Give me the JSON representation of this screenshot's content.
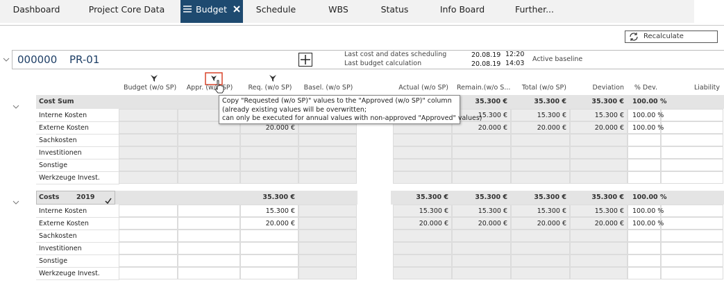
{
  "tabs": [
    {
      "label": "Dashboard"
    },
    {
      "label": "Project Core Data"
    },
    {
      "label": "Budget",
      "active": true
    },
    {
      "label": "Schedule"
    },
    {
      "label": "WBS"
    },
    {
      "label": "Status"
    },
    {
      "label": "Info Board"
    },
    {
      "label": "Further..."
    }
  ],
  "recalculate_button": "Recalculate",
  "project": {
    "id": "000000",
    "name": "PR-01",
    "scheduling": [
      {
        "label": "Last cost and dates scheduling",
        "date": "20.08.19",
        "time": "12:20"
      },
      {
        "label": "Last budget calculation",
        "date": "20.08.19",
        "time": "14:03"
      }
    ],
    "baseline": "Active baseline"
  },
  "columns": [
    {
      "key": "budget",
      "label": "Budget (w/o SP)"
    },
    {
      "key": "appr",
      "label": "Appr. (w/o SP)"
    },
    {
      "key": "req",
      "label": "Req. (w/o SP)"
    },
    {
      "key": "basel",
      "label": "Basel. (w/o SP)"
    },
    {
      "key": "actual",
      "label": "Actual (w/o SP)"
    },
    {
      "key": "remain",
      "label": "Remain.(w/o S..."
    },
    {
      "key": "total",
      "label": "Total (w/o SP)"
    },
    {
      "key": "deviation",
      "label": "Deviation"
    },
    {
      "key": "pct_dev",
      "label": "% Dev."
    },
    {
      "key": "liability",
      "label": "Liability"
    }
  ],
  "tooltip": [
    "Copy \"Requested (w/o SP)\" values to the \"Approved (w/o SP)\" column",
    "(already existing values will be overwritten;",
    "can only be executed for annual values with non-approved \"Approved\" values)"
  ],
  "sections": [
    {
      "title": "Cost Sum",
      "summary": {
        "remain": "35.300 €",
        "total": "35.300 €",
        "deviation": "35.300 €",
        "pct_dev": "100.00 %"
      },
      "rows": [
        {
          "label": "Interne Kosten",
          "values": {
            "remain": "15.300 €",
            "total": "15.300 €",
            "deviation": "15.300 €",
            "pct_dev": "100.00 %"
          }
        },
        {
          "label": "Externe Kosten",
          "values": {
            "req": "20.000 €",
            "remain": "20.000 €",
            "total": "20.000 €",
            "deviation": "20.000 €",
            "pct_dev": "100.00 %"
          }
        },
        {
          "label": "Sachkosten",
          "values": {}
        },
        {
          "label": "Investitionen",
          "values": {}
        },
        {
          "label": "Sonstige",
          "values": {}
        },
        {
          "label": "Werkzeuge Invest.",
          "values": {}
        }
      ]
    },
    {
      "title": "Costs",
      "year": "2019",
      "summary": {
        "req": "35.300 €",
        "actual": "35.300 €",
        "remain": "35.300 €",
        "total": "35.300 €",
        "deviation": "35.300 €",
        "pct_dev": "100.00 %"
      },
      "rows": [
        {
          "label": "Interne Kosten",
          "values": {
            "req": "15.300 €",
            "actual": "15.300 €",
            "remain": "15.300 €",
            "total": "15.300 €",
            "deviation": "15.300 €",
            "pct_dev": "100.00 %"
          }
        },
        {
          "label": "Externe Kosten",
          "values": {
            "req": "20.000 €",
            "actual": "20.000 €",
            "remain": "20.000 €",
            "total": "20.000 €",
            "deviation": "20.000 €",
            "pct_dev": "100.00 %"
          }
        },
        {
          "label": "Sachkosten",
          "values": {}
        },
        {
          "label": "Investitionen",
          "values": {}
        },
        {
          "label": "Sonstige",
          "values": {}
        },
        {
          "label": "Werkzeuge Invest.",
          "values": {}
        }
      ]
    }
  ]
}
